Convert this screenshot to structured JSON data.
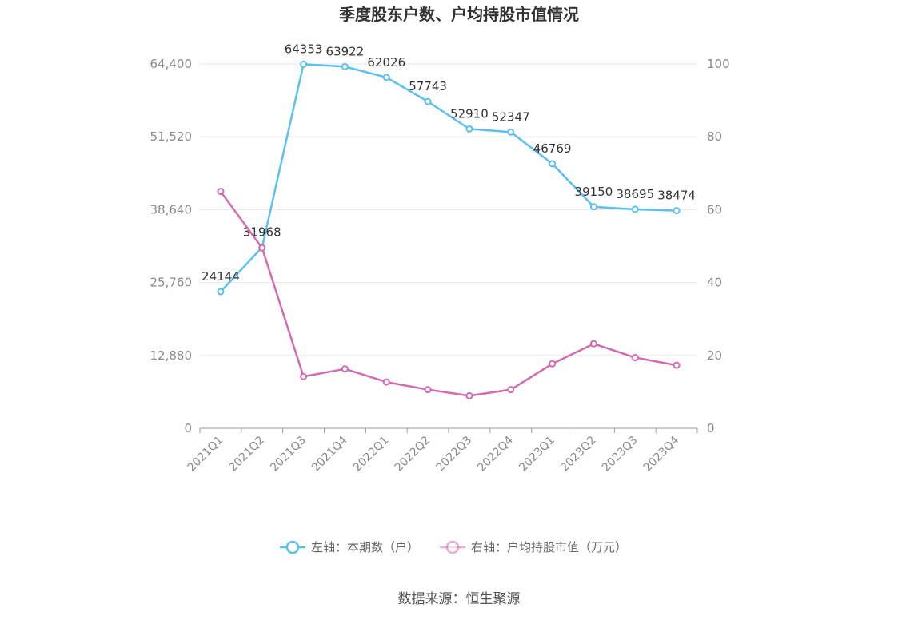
{
  "chart_data": {
    "type": "line",
    "title": "季度股东户数、户均持股市值情况",
    "categories": [
      "2021Q1",
      "2021Q2",
      "2021Q3",
      "2021Q4",
      "2022Q1",
      "2022Q2",
      "2022Q3",
      "2022Q4",
      "2023Q1",
      "2023Q2",
      "2023Q3",
      "2023Q4"
    ],
    "left_axis": {
      "ylim": [
        0,
        64400
      ],
      "ticks": [
        "0",
        "12,880",
        "25,760",
        "38,640",
        "51,520",
        "64,400"
      ],
      "tick_values": [
        0,
        12880,
        25760,
        38640,
        51520,
        64400
      ]
    },
    "right_axis": {
      "ylim": [
        0,
        100
      ],
      "ticks": [
        "0",
        "20",
        "40",
        "60",
        "80",
        "100"
      ],
      "tick_values": [
        0,
        20,
        40,
        60,
        80,
        100
      ]
    },
    "series": [
      {
        "name": "左轴：本期数（户）",
        "axis": "left",
        "color": "#5bc0f0",
        "values": [
          24144,
          31968,
          64353,
          63922,
          62026,
          57743,
          52910,
          52347,
          46769,
          39150,
          38695,
          38474
        ],
        "labels": [
          "24144",
          "31968",
          "64353",
          "63922",
          "62026",
          "57743",
          "52910",
          "52347",
          "46769",
          "39150",
          "38695",
          "38474"
        ]
      },
      {
        "name": "右轴：户均持股市值（万元）",
        "axis": "right",
        "color": "#d46bb0",
        "values": [
          65.0,
          49.5,
          14.2,
          16.3,
          12.7,
          10.6,
          8.9,
          10.6,
          17.7,
          23.2,
          19.4,
          17.3
        ]
      }
    ],
    "grid": true,
    "legend": "bottom"
  },
  "source": "数据来源：恒生聚源"
}
